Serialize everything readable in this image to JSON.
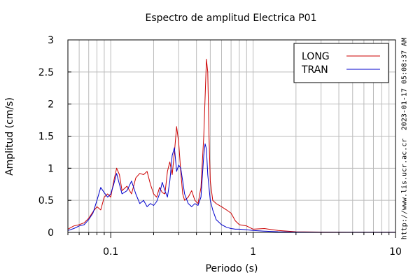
{
  "chart_data": {
    "type": "line",
    "title": "Espectro de amplitud Electrica P01",
    "xlabel": "Periodo (s)",
    "ylabel": "Amplitud (cm/s)",
    "x_scale": "log",
    "xlim": [
      0.05,
      10
    ],
    "ylim": [
      0,
      3
    ],
    "x_tick_labels": [
      "0.1",
      "1",
      "10"
    ],
    "y_tick_labels": [
      "0",
      "0.5",
      "1",
      "1.5",
      "2",
      "2.5",
      "3"
    ],
    "grid": true,
    "legend_position": "top-right",
    "series": [
      {
        "name": "LONG",
        "color": "#cc0000",
        "x": [
          0.05,
          0.055,
          0.06,
          0.065,
          0.07,
          0.075,
          0.08,
          0.085,
          0.09,
          0.095,
          0.1,
          0.105,
          0.11,
          0.115,
          0.12,
          0.13,
          0.14,
          0.15,
          0.16,
          0.17,
          0.18,
          0.19,
          0.2,
          0.21,
          0.22,
          0.23,
          0.24,
          0.25,
          0.26,
          0.27,
          0.28,
          0.29,
          0.3,
          0.31,
          0.32,
          0.33,
          0.35,
          0.37,
          0.39,
          0.41,
          0.43,
          0.45,
          0.47,
          0.48,
          0.49,
          0.5,
          0.52,
          0.55,
          0.6,
          0.65,
          0.7,
          0.75,
          0.8,
          0.9,
          1.0,
          1.2,
          1.5,
          2.0,
          3.0,
          5.0,
          10.0
        ],
        "y": [
          0.05,
          0.1,
          0.12,
          0.15,
          0.22,
          0.32,
          0.4,
          0.35,
          0.55,
          0.6,
          0.55,
          0.8,
          1.0,
          0.9,
          0.65,
          0.72,
          0.6,
          0.85,
          0.92,
          0.9,
          0.95,
          0.75,
          0.6,
          0.55,
          0.7,
          0.62,
          0.6,
          0.95,
          1.1,
          0.9,
          1.25,
          1.65,
          1.4,
          0.95,
          0.6,
          0.5,
          0.55,
          0.65,
          0.5,
          0.45,
          0.7,
          1.5,
          2.7,
          2.5,
          1.5,
          0.8,
          0.5,
          0.45,
          0.4,
          0.35,
          0.3,
          0.18,
          0.12,
          0.1,
          0.05,
          0.06,
          0.03,
          0.01,
          0.005,
          0.003,
          0.003
        ]
      },
      {
        "name": "TRAN",
        "color": "#0000cc",
        "x": [
          0.05,
          0.055,
          0.06,
          0.065,
          0.07,
          0.075,
          0.08,
          0.085,
          0.09,
          0.095,
          0.1,
          0.105,
          0.11,
          0.115,
          0.12,
          0.13,
          0.14,
          0.15,
          0.16,
          0.17,
          0.18,
          0.19,
          0.2,
          0.21,
          0.22,
          0.23,
          0.24,
          0.25,
          0.26,
          0.27,
          0.28,
          0.29,
          0.3,
          0.31,
          0.32,
          0.33,
          0.35,
          0.37,
          0.39,
          0.41,
          0.43,
          0.45,
          0.46,
          0.47,
          0.48,
          0.5,
          0.52,
          0.55,
          0.6,
          0.65,
          0.7,
          0.75,
          0.8,
          0.9,
          1.0,
          1.2,
          1.5,
          2.0,
          3.0,
          5.0,
          10.0
        ],
        "y": [
          0.03,
          0.06,
          0.1,
          0.12,
          0.2,
          0.3,
          0.5,
          0.7,
          0.62,
          0.55,
          0.6,
          0.75,
          0.92,
          0.75,
          0.6,
          0.65,
          0.8,
          0.6,
          0.45,
          0.5,
          0.4,
          0.45,
          0.42,
          0.48,
          0.6,
          0.78,
          0.65,
          0.55,
          0.8,
          1.2,
          1.32,
          0.95,
          1.05,
          1.0,
          0.8,
          0.6,
          0.45,
          0.4,
          0.45,
          0.42,
          0.55,
          1.2,
          1.38,
          1.3,
          0.9,
          0.5,
          0.35,
          0.2,
          0.12,
          0.08,
          0.06,
          0.05,
          0.05,
          0.04,
          0.03,
          0.02,
          0.01,
          0.005,
          0.003,
          0.003,
          0.003
        ]
      }
    ]
  },
  "side_texts": {
    "timestamp": "2023-01-17 05:08:37 AM",
    "url": "http://www.lis.ucr.ac.cr"
  }
}
